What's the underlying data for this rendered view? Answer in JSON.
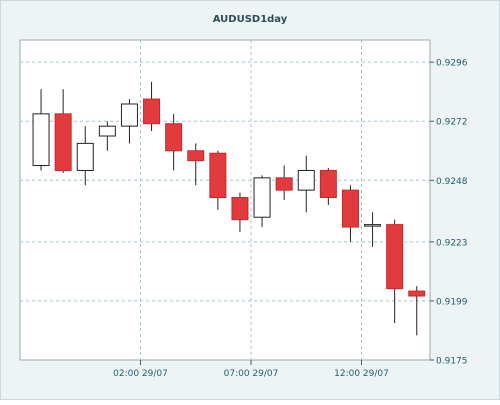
{
  "chart_data": {
    "type": "candlestick",
    "title": "AUDUSD1day",
    "xlabel": "",
    "ylabel": "",
    "ylim": [
      0.9175,
      0.9305
    ],
    "y_ticks": [
      "0.9296",
      "0.9272",
      "0.9248",
      "0.9223",
      "0.9199",
      "0.9175"
    ],
    "x_ticks": [
      {
        "label": "02:00 29/07",
        "index": 4.5
      },
      {
        "label": "07:00 29/07",
        "index": 9.5
      },
      {
        "label": "12:00 29/07",
        "index": 14.5
      }
    ],
    "grid": true,
    "legend": "none",
    "colors": {
      "background": "#eef4f6",
      "plot_background": "#ffffff",
      "up_fill": "#ffffff",
      "down_fill": "#e23b3e",
      "candle_outline": "#222222",
      "grid": "#9cc7cf",
      "axis_label": "#1f5f6a",
      "title": "#2a4f57"
    },
    "candles": [
      {
        "open": 0.9254,
        "high": 0.9285,
        "low": 0.9252,
        "close": 0.9275
      },
      {
        "open": 0.9275,
        "high": 0.9285,
        "low": 0.9251,
        "close": 0.9252
      },
      {
        "open": 0.9252,
        "high": 0.927,
        "low": 0.9246,
        "close": 0.9263
      },
      {
        "open": 0.9266,
        "high": 0.9272,
        "low": 0.926,
        "close": 0.927
      },
      {
        "open": 0.927,
        "high": 0.9281,
        "low": 0.9263,
        "close": 0.9279
      },
      {
        "open": 0.9281,
        "high": 0.9288,
        "low": 0.9268,
        "close": 0.9271
      },
      {
        "open": 0.9271,
        "high": 0.9275,
        "low": 0.9252,
        "close": 0.926
      },
      {
        "open": 0.926,
        "high": 0.9263,
        "low": 0.9246,
        "close": 0.9256
      },
      {
        "open": 0.9259,
        "high": 0.926,
        "low": 0.9236,
        "close": 0.9241
      },
      {
        "open": 0.9241,
        "high": 0.9243,
        "low": 0.9227,
        "close": 0.9232
      },
      {
        "open": 0.9233,
        "high": 0.925,
        "low": 0.9229,
        "close": 0.9249
      },
      {
        "open": 0.9249,
        "high": 0.9254,
        "low": 0.924,
        "close": 0.9244
      },
      {
        "open": 0.9244,
        "high": 0.9258,
        "low": 0.9235,
        "close": 0.9252
      },
      {
        "open": 0.9252,
        "high": 0.9253,
        "low": 0.9238,
        "close": 0.9241
      },
      {
        "open": 0.9244,
        "high": 0.9246,
        "low": 0.9223,
        "close": 0.9229
      },
      {
        "open": 0.923,
        "high": 0.9235,
        "low": 0.9221,
        "close": 0.923
      },
      {
        "open": 0.923,
        "high": 0.9232,
        "low": 0.919,
        "close": 0.9204
      },
      {
        "open": 0.9203,
        "high": 0.9205,
        "low": 0.9185,
        "close": 0.9201
      }
    ]
  }
}
